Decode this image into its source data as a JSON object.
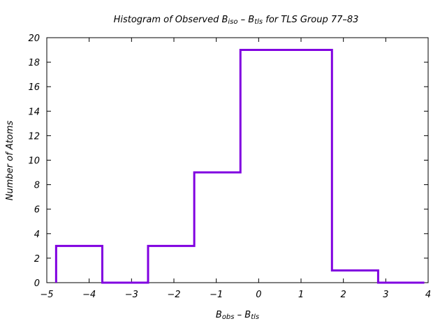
{
  "chart_data": {
    "type": "histogram",
    "title": {
      "t1": "Histogram of Observed B",
      "s1": "iso",
      "t2": " – B",
      "s2": "tls",
      "t3": "  for TLS Group 77–83"
    },
    "xlabel": {
      "t1": "B",
      "s1": "obs",
      "t2": " – B",
      "s2": "tls"
    },
    "ylabel": "Number of Atoms",
    "xlim": [
      -5,
      4
    ],
    "ylim": [
      0,
      20
    ],
    "xticks": [
      "−5",
      "−4",
      "−3",
      "−2",
      "−1",
      "0",
      "1",
      "2",
      "3",
      "4"
    ],
    "yticks": [
      "0",
      "2",
      "4",
      "6",
      "8",
      "10",
      "12",
      "14",
      "16",
      "18",
      "20"
    ],
    "bins": [
      {
        "x0": -4.78,
        "x1": -3.69,
        "count": 3
      },
      {
        "x0": -3.69,
        "x1": -2.61,
        "count": 0
      },
      {
        "x0": -2.61,
        "x1": -1.52,
        "count": 3
      },
      {
        "x0": -1.52,
        "x1": -0.43,
        "count": 9
      },
      {
        "x0": -0.43,
        "x1": 1.73,
        "count": 19
      },
      {
        "x0": 1.73,
        "x1": 2.82,
        "count": 1
      },
      {
        "x0": 2.82,
        "x1": 3.91,
        "count": 0
      }
    ],
    "series_color": "#8000e0",
    "grid": false,
    "legend": "none"
  }
}
